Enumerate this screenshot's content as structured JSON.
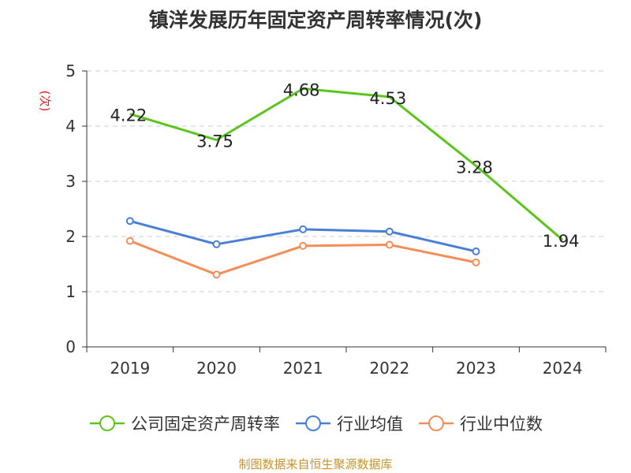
{
  "chart_data": {
    "type": "line",
    "title": "镇洋发展历年固定资产周转率情况(次)",
    "ylabel": "(次)",
    "categories": [
      "2019",
      "2020",
      "2021",
      "2022",
      "2023",
      "2024"
    ],
    "ylim": [
      0,
      5
    ],
    "yticks": [
      "0",
      "1",
      "2",
      "3",
      "4",
      "5"
    ],
    "grid": true,
    "legend_position": "bottom",
    "series": [
      {
        "name": "公司固定资产周转率",
        "color": "#5cc41e",
        "values": [
          4.22,
          3.75,
          4.68,
          4.53,
          3.28,
          1.94
        ],
        "labels": [
          "4.22",
          "3.75",
          "4.68",
          "4.53",
          "3.28",
          "1.94"
        ],
        "show_markers": false
      },
      {
        "name": "行业均值",
        "color": "#4a7fd6",
        "values": [
          2.28,
          1.86,
          2.13,
          2.09,
          1.73,
          null
        ],
        "show_markers": true
      },
      {
        "name": "行业中位数",
        "color": "#f58d59",
        "values": [
          1.92,
          1.31,
          1.83,
          1.85,
          1.53,
          null
        ],
        "show_markers": true
      }
    ]
  },
  "footer": {
    "source": "制图数据来自恒生聚源数据库"
  }
}
